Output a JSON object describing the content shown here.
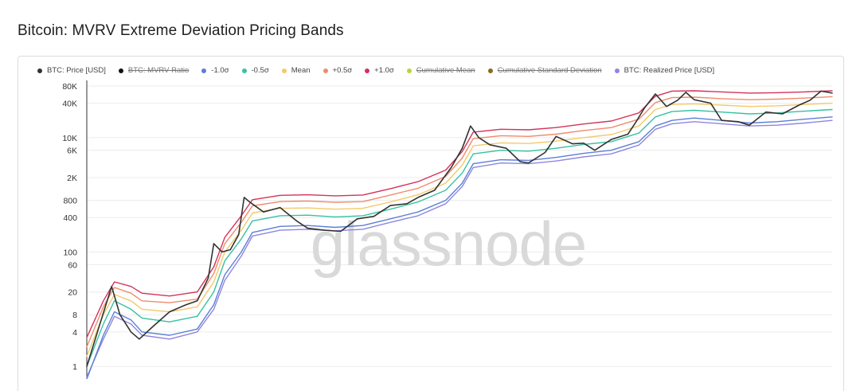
{
  "page": {
    "title": "Bitcoin: MVRV Extreme Deviation Pricing Bands"
  },
  "watermark": "glassnode",
  "legend": [
    {
      "label": "BTC: Price [USD]",
      "color": "#333333",
      "active": true
    },
    {
      "label": "BTC: MVRV Ratio",
      "color": "#111111",
      "active": false
    },
    {
      "label": "-1.0σ",
      "color": "#5b7fd6",
      "active": true
    },
    {
      "label": "-0.5σ",
      "color": "#36c2a1",
      "active": true
    },
    {
      "label": "Mean",
      "color": "#f4c96b",
      "active": true
    },
    {
      "label": "+0.5σ",
      "color": "#f08b6b",
      "active": true
    },
    {
      "label": "+1.0σ",
      "color": "#d3335b",
      "active": true
    },
    {
      "label": "Cumulative Mean",
      "color": "#b8d43a",
      "active": false
    },
    {
      "label": "Cumulative Standard Deviation",
      "color": "#8a6a1a",
      "active": false
    },
    {
      "label": "BTC: Realized Price [USD]",
      "color": "#8f86e0",
      "active": true
    }
  ],
  "chart_data": {
    "type": "line",
    "title": "Bitcoin: MVRV Extreme Deviation Pricing Bands",
    "y_scale": "log",
    "y_ticks": [
      {
        "label": "1",
        "value": 1
      },
      {
        "label": "4",
        "value": 4
      },
      {
        "label": "8",
        "value": 8
      },
      {
        "label": "20",
        "value": 20
      },
      {
        "label": "60",
        "value": 60
      },
      {
        "label": "100",
        "value": 100
      },
      {
        "label": "400",
        "value": 400
      },
      {
        "label": "800",
        "value": 800
      },
      {
        "label": "2K",
        "value": 2000
      },
      {
        "label": "6K",
        "value": 6000
      },
      {
        "label": "10K",
        "value": 10000
      },
      {
        "label": "40K",
        "value": 40000
      },
      {
        "label": "80K",
        "value": 80000
      }
    ],
    "ylim": [
      0.6,
      100000
    ],
    "xlim": [
      2011.0,
      2024.5
    ],
    "grid": true,
    "legend_position": "top",
    "series": [
      {
        "name": "BTC: Price [USD]",
        "color": "#333333",
        "x": [
          2011.0,
          2011.25,
          2011.45,
          2011.6,
          2011.8,
          2011.95,
          2012.2,
          2012.5,
          2012.8,
          2013.0,
          2013.2,
          2013.3,
          2013.45,
          2013.6,
          2013.75,
          2013.85,
          2013.95,
          2014.2,
          2014.5,
          2014.8,
          2015.0,
          2015.3,
          2015.6,
          2015.9,
          2016.2,
          2016.5,
          2016.8,
          2017.0,
          2017.3,
          2017.6,
          2017.8,
          2017.95,
          2018.1,
          2018.3,
          2018.6,
          2018.85,
          2019.0,
          2019.3,
          2019.5,
          2019.8,
          2020.0,
          2020.2,
          2020.5,
          2020.8,
          2020.95,
          2021.1,
          2021.3,
          2021.5,
          2021.7,
          2021.85,
          2022.0,
          2022.3,
          2022.5,
          2022.8,
          2023.0,
          2023.3,
          2023.6,
          2023.9,
          2024.1,
          2024.3,
          2024.5
        ],
        "values": [
          1.0,
          6,
          25,
          8,
          4,
          3,
          5,
          9,
          12,
          14,
          35,
          140,
          100,
          110,
          200,
          900,
          750,
          500,
          600,
          350,
          260,
          240,
          230,
          380,
          420,
          650,
          700,
          900,
          1200,
          3000,
          6500,
          16000,
          10000,
          7500,
          6500,
          3800,
          3600,
          5500,
          10500,
          7800,
          8000,
          6000,
          9300,
          11500,
          19000,
          33000,
          58000,
          35000,
          45000,
          62000,
          46000,
          40000,
          20000,
          19000,
          16500,
          28000,
          26000,
          37000,
          45000,
          65000,
          60000
        ]
      },
      {
        "name": "-1.0σ",
        "color": "#5b7fd6",
        "x": [
          2011.0,
          2011.3,
          2011.5,
          2011.8,
          2012.0,
          2012.5,
          2013.0,
          2013.3,
          2013.5,
          2013.8,
          2014.0,
          2014.5,
          2015.0,
          2015.5,
          2016.0,
          2016.5,
          2017.0,
          2017.5,
          2017.8,
          2018.0,
          2018.5,
          2019.0,
          2019.5,
          2020.0,
          2020.5,
          2021.0,
          2021.3,
          2021.6,
          2022.0,
          2022.5,
          2023.0,
          2023.5,
          2024.0,
          2024.5
        ],
        "values": [
          0.6,
          3.5,
          9,
          6.5,
          4,
          3.5,
          4.5,
          12,
          40,
          100,
          220,
          280,
          290,
          270,
          290,
          380,
          500,
          800,
          1600,
          3500,
          4100,
          4000,
          4500,
          5300,
          6000,
          8500,
          16000,
          20000,
          22000,
          20000,
          18000,
          19000,
          21000,
          23000
        ]
      },
      {
        "name": "-0.5σ",
        "color": "#36c2a1",
        "x": [
          2011.0,
          2011.3,
          2011.5,
          2011.8,
          2012.0,
          2012.5,
          2013.0,
          2013.3,
          2013.5,
          2013.8,
          2014.0,
          2014.5,
          2015.0,
          2015.5,
          2016.0,
          2016.5,
          2017.0,
          2017.5,
          2017.8,
          2018.0,
          2018.5,
          2019.0,
          2019.5,
          2020.0,
          2020.5,
          2021.0,
          2021.3,
          2021.6,
          2022.0,
          2022.5,
          2023.0,
          2023.5,
          2024.0,
          2024.5
        ],
        "values": [
          1.0,
          5.5,
          14,
          10,
          7,
          6,
          7.5,
          20,
          70,
          170,
          350,
          430,
          440,
          410,
          430,
          560,
          750,
          1200,
          2400,
          5200,
          6000,
          5800,
          6500,
          7600,
          8500,
          12000,
          23000,
          28500,
          30000,
          28000,
          26000,
          27000,
          29000,
          31000
        ]
      },
      {
        "name": "Mean",
        "color": "#f4c96b",
        "x": [
          2011.0,
          2011.3,
          2011.5,
          2011.8,
          2012.0,
          2012.5,
          2013.0,
          2013.3,
          2013.5,
          2013.8,
          2014.0,
          2014.5,
          2015.0,
          2015.5,
          2016.0,
          2016.5,
          2017.0,
          2017.5,
          2017.8,
          2018.0,
          2018.5,
          2019.0,
          2019.5,
          2020.0,
          2020.5,
          2021.0,
          2021.3,
          2021.6,
          2022.0,
          2022.5,
          2023.0,
          2023.5,
          2024.0,
          2024.5
        ],
        "values": [
          1.5,
          8,
          18,
          14,
          10,
          9,
          11,
          30,
          100,
          240,
          480,
          580,
          590,
          560,
          580,
          750,
          1000,
          1600,
          3300,
          7200,
          8100,
          7900,
          8700,
          10000,
          11300,
          16000,
          31000,
          38000,
          39000,
          37000,
          35000,
          36000,
          38000,
          40000
        ]
      },
      {
        "name": "+0.5σ",
        "color": "#f08b6b",
        "x": [
          2011.0,
          2011.3,
          2011.5,
          2011.8,
          2012.0,
          2012.5,
          2013.0,
          2013.3,
          2013.5,
          2013.8,
          2014.0,
          2014.5,
          2015.0,
          2015.5,
          2016.0,
          2016.5,
          2017.0,
          2017.5,
          2017.8,
          2018.0,
          2018.5,
          2019.0,
          2019.5,
          2020.0,
          2020.5,
          2021.0,
          2021.3,
          2021.6,
          2022.0,
          2022.5,
          2023.0,
          2023.5,
          2024.0,
          2024.5
        ],
        "values": [
          2.2,
          11,
          24,
          19,
          14,
          13,
          15,
          42,
          140,
          330,
          640,
          760,
          780,
          740,
          760,
          990,
          1300,
          2100,
          4400,
          9600,
          10800,
          10500,
          11500,
          13300,
          15000,
          21000,
          41000,
          50000,
          51000,
          48000,
          46000,
          47000,
          49000,
          52000
        ]
      },
      {
        "name": "+1.0σ",
        "color": "#d3335b",
        "x": [
          2011.0,
          2011.3,
          2011.5,
          2011.8,
          2012.0,
          2012.5,
          2013.0,
          2013.3,
          2013.5,
          2013.8,
          2014.0,
          2014.5,
          2015.0,
          2015.5,
          2016.0,
          2016.5,
          2017.0,
          2017.5,
          2017.8,
          2018.0,
          2018.5,
          2019.0,
          2019.5,
          2020.0,
          2020.5,
          2021.0,
          2021.3,
          2021.6,
          2022.0,
          2022.5,
          2023.0,
          2023.5,
          2024.0,
          2024.5
        ],
        "values": [
          3.2,
          14,
          30,
          25,
          19,
          17,
          20,
          55,
          180,
          430,
          820,
          980,
          1000,
          960,
          990,
          1280,
          1700,
          2700,
          5700,
          12500,
          14000,
          13700,
          15000,
          17300,
          19500,
          27000,
          53000,
          65000,
          66000,
          63000,
          60000,
          61000,
          63000,
          66000
        ]
      },
      {
        "name": "BTC: Realized Price [USD]",
        "color": "#8f86e0",
        "x": [
          2011.0,
          2011.3,
          2011.5,
          2011.8,
          2012.0,
          2012.5,
          2013.0,
          2013.3,
          2013.5,
          2013.8,
          2014.0,
          2014.5,
          2015.0,
          2015.5,
          2016.0,
          2016.5,
          2017.0,
          2017.5,
          2017.8,
          2018.0,
          2018.5,
          2019.0,
          2019.5,
          2020.0,
          2020.5,
          2021.0,
          2021.3,
          2021.6,
          2022.0,
          2022.5,
          2023.0,
          2023.5,
          2024.0,
          2024.5
        ],
        "values": [
          0.65,
          3.0,
          7.5,
          5.5,
          3.5,
          3.0,
          4.0,
          10,
          32,
          85,
          190,
          240,
          250,
          235,
          250,
          330,
          430,
          700,
          1400,
          3000,
          3600,
          3500,
          3900,
          4600,
          5200,
          7400,
          14000,
          17500,
          19000,
          17500,
          16000,
          16500,
          18000,
          20000
        ]
      }
    ]
  }
}
